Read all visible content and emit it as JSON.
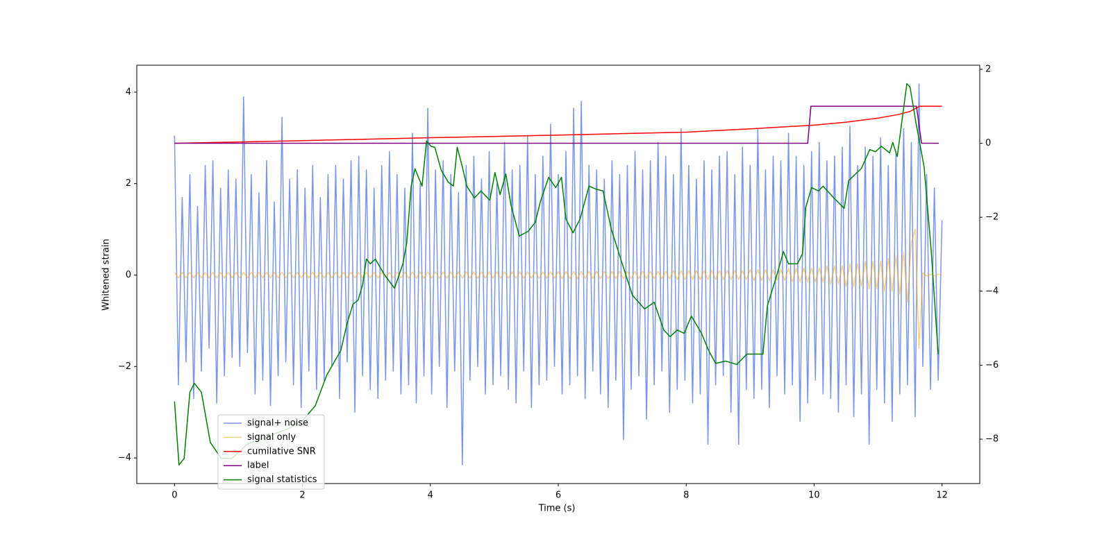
{
  "chart_data": {
    "type": "line",
    "xlabel": "Time (s)",
    "ylabel": "Whitened strain",
    "xlim": [
      -0.59,
      12.59
    ],
    "ylim": [
      -4.56,
      4.59
    ],
    "y2lim": [
      -9.2,
      2.11
    ],
    "xticks": [
      0,
      2,
      4,
      6,
      8,
      10,
      12
    ],
    "yticks": [
      {
        "value": -4,
        "label": "−4"
      },
      {
        "value": -2,
        "label": "−2"
      },
      0,
      2,
      4
    ],
    "y2ticks": [
      {
        "value": -8,
        "label": "−8"
      },
      {
        "value": -6,
        "label": "−6"
      },
      {
        "value": -4,
        "label": "−4"
      },
      {
        "value": -2,
        "label": "−2"
      },
      0,
      2
    ],
    "legend": "lower left",
    "x": [
      0,
      0.06,
      0.12,
      0.18,
      0.24,
      0.3,
      0.36,
      0.42,
      0.48,
      0.54,
      0.6,
      0.66,
      0.72,
      0.78,
      0.84,
      0.9,
      0.96,
      1.02,
      1.08,
      1.14,
      1.2,
      1.26,
      1.32,
      1.38,
      1.44,
      1.5,
      1.56,
      1.62,
      1.68,
      1.74,
      1.8,
      1.86,
      1.92,
      1.98,
      2.04,
      2.1,
      2.16,
      2.22,
      2.28,
      2.34,
      2.4,
      2.46,
      2.52,
      2.58,
      2.64,
      2.7,
      2.76,
      2.82,
      2.88,
      2.94,
      3,
      3.06,
      3.12,
      3.18,
      3.24,
      3.3,
      3.36,
      3.42,
      3.48,
      3.54,
      3.6,
      3.66,
      3.72,
      3.78,
      3.84,
      3.9,
      3.96,
      4.02,
      4.08,
      4.14,
      4.2,
      4.26,
      4.32,
      4.38,
      4.44,
      4.5,
      4.56,
      4.62,
      4.68,
      4.74,
      4.8,
      4.86,
      4.92,
      4.98,
      5.04,
      5.1,
      5.16,
      5.22,
      5.28,
      5.34,
      5.4,
      5.46,
      5.52,
      5.58,
      5.64,
      5.7,
      5.76,
      5.82,
      5.88,
      5.94,
      6,
      6.06,
      6.12,
      6.18,
      6.24,
      6.3,
      6.36,
      6.42,
      6.48,
      6.54,
      6.6,
      6.66,
      6.72,
      6.78,
      6.84,
      6.9,
      6.96,
      7.02,
      7.08,
      7.14,
      7.2,
      7.26,
      7.32,
      7.38,
      7.44,
      7.5,
      7.56,
      7.62,
      7.68,
      7.74,
      7.8,
      7.86,
      7.92,
      7.98,
      8.04,
      8.1,
      8.16,
      8.22,
      8.28,
      8.34,
      8.4,
      8.46,
      8.52,
      8.58,
      8.64,
      8.7,
      8.76,
      8.82,
      8.88,
      8.94,
      9,
      9.06,
      9.12,
      9.18,
      9.24,
      9.3,
      9.36,
      9.42,
      9.48,
      9.54,
      9.6,
      9.66,
      9.72,
      9.78,
      9.84,
      9.9,
      9.96,
      10.02,
      10.08,
      10.14,
      10.2,
      10.26,
      10.32,
      10.38,
      10.44,
      10.5,
      10.56,
      10.62,
      10.68,
      10.74,
      10.8,
      10.86,
      10.92,
      10.98,
      11.04,
      11.1,
      11.16,
      11.22,
      11.28,
      11.34,
      11.4,
      11.46,
      11.52,
      11.58,
      11.64,
      11.7,
      11.76,
      11.82,
      11.88,
      11.94,
      12
    ],
    "series": [
      {
        "name": "signal+ noise",
        "color": "#4169e1",
        "alpha": 0.7,
        "values": [
          3.05,
          -2.4,
          1.7,
          -1.9,
          2.2,
          -2.7,
          1.5,
          -2.1,
          2.4,
          -1.6,
          2.5,
          -2.8,
          1.9,
          -2.2,
          2.3,
          -1.8,
          2.1,
          -2.0,
          3.9,
          -1.7,
          2.2,
          -2.6,
          1.8,
          -2.3,
          2.5,
          -2.85,
          1.6,
          -2.2,
          3.45,
          -1.9,
          2.1,
          -2.4,
          2.3,
          -2.9,
          1.9,
          -2.1,
          2.4,
          -2.5,
          1.7,
          -2.3,
          2.2,
          -2.0,
          2.4,
          -2.7,
          2.1,
          -1.9,
          2.5,
          -3.0,
          2.6,
          -2.2,
          2.3,
          -2.5,
          1.9,
          -2.7,
          2.4,
          -2.3,
          2.7,
          -2.1,
          2.2,
          -2.6,
          1.9,
          -2.4,
          3.1,
          -2.8,
          2.0,
          -2.2,
          3.65,
          -2.6,
          2.3,
          -2.0,
          2.5,
          -2.9,
          2.2,
          -2.1,
          1.8,
          -4.15,
          2.4,
          -2.3,
          2.6,
          -2.0,
          2.1,
          -2.6,
          2.7,
          -2.4,
          2.0,
          -2.2,
          2.9,
          -2.5,
          2.3,
          -2.8,
          2.4,
          -2.1,
          3.05,
          -2.9,
          2.2,
          -2.4,
          2.6,
          -2.3,
          3.3,
          -2.0,
          2.2,
          -2.6,
          2.7,
          -2.4,
          3.65,
          -2.2,
          3.8,
          -2.7,
          2.4,
          -2.1,
          2.3,
          -2.6,
          2.1,
          -2.9,
          2.5,
          -2.3,
          2.2,
          -3.6,
          2.4,
          -2.5,
          2.7,
          -2.2,
          2.3,
          -3.15,
          2.5,
          -2.4,
          2.9,
          -2.1,
          2.6,
          -3.0,
          2.2,
          -2.5,
          3.2,
          -2.3,
          2.4,
          -2.8,
          2.1,
          -2.6,
          2.5,
          -3.7,
          2.3,
          -2.4,
          2.6,
          -2.2,
          2.7,
          -3.0,
          2.2,
          -3.7,
          2.8,
          -2.5,
          2.4,
          -2.7,
          3.2,
          -2.5,
          2.3,
          -2.9,
          2.6,
          -2.2,
          2.5,
          -2.6,
          3.1,
          -2.4,
          2.6,
          -3.2,
          2.4,
          -2.8,
          2.7,
          -2.3,
          2.9,
          -2.6,
          2.5,
          -2.7,
          2.6,
          -3.0,
          2.8,
          -2.4,
          3.25,
          -3.1,
          2.4,
          -2.6,
          2.8,
          -3.7,
          2.6,
          -2.5,
          3.0,
          -2.8,
          2.4,
          -3.2,
          2.7,
          -2.6,
          3.2,
          -2.4,
          2.9,
          -3.1,
          4.18,
          -2.0,
          2.2,
          -2.5,
          1.9,
          -2.3,
          1.2
        ]
      },
      {
        "name": "signal only",
        "color": "#ffa500",
        "alpha": 0.5,
        "values": [
          0.06,
          -0.06,
          0.06,
          -0.06,
          0.06,
          -0.06,
          0.06,
          -0.06,
          0.06,
          -0.06,
          0.06,
          -0.06,
          0.06,
          -0.06,
          0.06,
          -0.06,
          0.06,
          -0.06,
          0.06,
          -0.06,
          0.06,
          -0.06,
          0.06,
          -0.06,
          0.06,
          -0.06,
          0.06,
          -0.06,
          0.06,
          -0.06,
          0.06,
          -0.06,
          0.06,
          -0.06,
          0.06,
          -0.06,
          0.06,
          -0.06,
          0.06,
          -0.06,
          0.06,
          -0.06,
          0.06,
          -0.06,
          0.06,
          -0.06,
          0.06,
          -0.06,
          0.06,
          -0.06,
          0.06,
          -0.06,
          0.06,
          -0.06,
          0.06,
          -0.06,
          0.06,
          -0.06,
          0.06,
          -0.06,
          0.07,
          -0.07,
          0.07,
          -0.07,
          0.07,
          -0.07,
          0.07,
          -0.07,
          0.07,
          -0.07,
          0.07,
          -0.07,
          0.07,
          -0.07,
          0.07,
          -0.07,
          0.07,
          -0.07,
          0.07,
          -0.07,
          0.07,
          -0.07,
          0.07,
          -0.07,
          0.07,
          -0.07,
          0.07,
          -0.07,
          0.07,
          -0.07,
          0.07,
          -0.07,
          0.07,
          -0.07,
          0.07,
          -0.07,
          0.07,
          -0.07,
          0.07,
          -0.07,
          0.08,
          -0.08,
          0.08,
          -0.08,
          0.08,
          -0.08,
          0.08,
          -0.08,
          0.08,
          -0.08,
          0.08,
          -0.08,
          0.08,
          -0.08,
          0.08,
          -0.08,
          0.08,
          -0.08,
          0.08,
          -0.08,
          0.08,
          -0.08,
          0.08,
          -0.08,
          0.08,
          -0.08,
          0.08,
          -0.08,
          0.08,
          -0.08,
          0.1,
          -0.1,
          0.1,
          -0.1,
          0.1,
          -0.1,
          0.1,
          -0.1,
          0.1,
          -0.1,
          0.1,
          -0.1,
          0.1,
          -0.1,
          0.1,
          -0.1,
          0.1,
          -0.1,
          0.1,
          -0.1,
          0.12,
          -0.12,
          0.12,
          -0.12,
          0.12,
          -0.12,
          0.12,
          -0.12,
          0.12,
          -0.12,
          0.15,
          -0.15,
          0.15,
          -0.15,
          0.15,
          -0.15,
          0.15,
          -0.15,
          0.15,
          -0.15,
          0.2,
          -0.2,
          0.2,
          -0.2,
          0.2,
          -0.25,
          0.25,
          -0.25,
          0.25,
          -0.25,
          0.3,
          -0.3,
          0.3,
          -0.3,
          0.3,
          -0.36,
          0.36,
          -0.36,
          0.42,
          -0.42,
          0.5,
          -0.6,
          0.7,
          1.0,
          -1.6,
          0.05,
          -0.02,
          0.02,
          -0.02,
          0.02,
          0
        ]
      },
      {
        "name": "cumilative SNR",
        "color": "#ff0000",
        "axis": "y2",
        "x": [
          0,
          2,
          4,
          6,
          8,
          9,
          10,
          10.5,
          11,
          11.3,
          11.5,
          11.65,
          12
        ],
        "values": [
          0,
          0.07,
          0.15,
          0.22,
          0.3,
          0.39,
          0.49,
          0.57,
          0.68,
          0.77,
          0.86,
          1.0,
          1.0
        ]
      },
      {
        "name": "label",
        "color": "#800080",
        "axis": "y2",
        "x": [
          0,
          9.9,
          9.95,
          11.6,
          11.68,
          11.95
        ],
        "values": [
          0,
          0,
          1,
          1,
          0,
          0
        ]
      },
      {
        "name": "signal statistics",
        "color": "#008000",
        "axis": "y2",
        "x": [
          0,
          0.07,
          0.15,
          0.24,
          0.31,
          0.42,
          0.56,
          0.73,
          0.9,
          1.13,
          1.5,
          1.8,
          2.0,
          2.2,
          2.38,
          2.6,
          2.7,
          2.79,
          2.87,
          2.94,
          3.0,
          3.06,
          3.14,
          3.28,
          3.44,
          3.57,
          3.63,
          3.7,
          3.76,
          3.87,
          3.94,
          4.01,
          4.07,
          4.17,
          4.28,
          4.36,
          4.42,
          4.5,
          4.57,
          4.69,
          4.79,
          4.93,
          5.01,
          5.09,
          5.18,
          5.26,
          5.39,
          5.53,
          5.64,
          5.72,
          5.85,
          5.96,
          6.05,
          6.12,
          6.23,
          6.34,
          6.48,
          6.59,
          6.7,
          6.83,
          7.0,
          7.16,
          7.35,
          7.5,
          7.65,
          7.75,
          7.86,
          7.97,
          8.08,
          8.24,
          8.35,
          8.46,
          8.62,
          8.79,
          8.95,
          9.11,
          9.2,
          9.27,
          9.42,
          9.52,
          9.6,
          9.74,
          9.82,
          9.87,
          9.96,
          10.07,
          10.14,
          10.31,
          10.47,
          10.54,
          10.74,
          10.87,
          10.96,
          11.05,
          11.18,
          11.23,
          11.3,
          11.45,
          11.5,
          11.59,
          11.72,
          11.83,
          11.94
        ],
        "values": [
          -6.98,
          -8.7,
          -8.52,
          -6.73,
          -6.49,
          -6.73,
          -8.09,
          -8.52,
          -8.52,
          -8.14,
          -7.9,
          -7.7,
          -7.5,
          -7.1,
          -6.27,
          -5.6,
          -4.86,
          -4.35,
          -4.24,
          -3.83,
          -3.13,
          -3.26,
          -3.13,
          -3.55,
          -3.92,
          -3.26,
          -2.7,
          -1.16,
          -0.69,
          -1.16,
          0.06,
          -0.08,
          -0.11,
          -0.73,
          -1.05,
          -1.16,
          -0.11,
          -0.64,
          -1.16,
          -1.48,
          -1.29,
          -1.54,
          -0.79,
          -1.39,
          -0.83,
          -1.67,
          -2.51,
          -2.38,
          -2.14,
          -1.58,
          -0.92,
          -1.2,
          -0.92,
          -2.05,
          -2.42,
          -2.05,
          -1.16,
          -1.24,
          -1.29,
          -2.33,
          -3.26,
          -4.11,
          -4.48,
          -4.3,
          -5.05,
          -5.23,
          -5.05,
          -5.14,
          -4.67,
          -5.14,
          -5.6,
          -5.95,
          -5.89,
          -5.98,
          -5.7,
          -5.7,
          -5.7,
          -4.39,
          -3.55,
          -2.93,
          -3.26,
          -3.26,
          -2.98,
          -1.73,
          -1.2,
          -1.29,
          -1.16,
          -1.48,
          -1.76,
          -1.01,
          -0.68,
          -0.17,
          -0.23,
          -0.08,
          -0.26,
          0.02,
          -0.36,
          1.61,
          1.52,
          0.58,
          -0.64,
          -2.89,
          -5.7
        ]
      }
    ]
  }
}
